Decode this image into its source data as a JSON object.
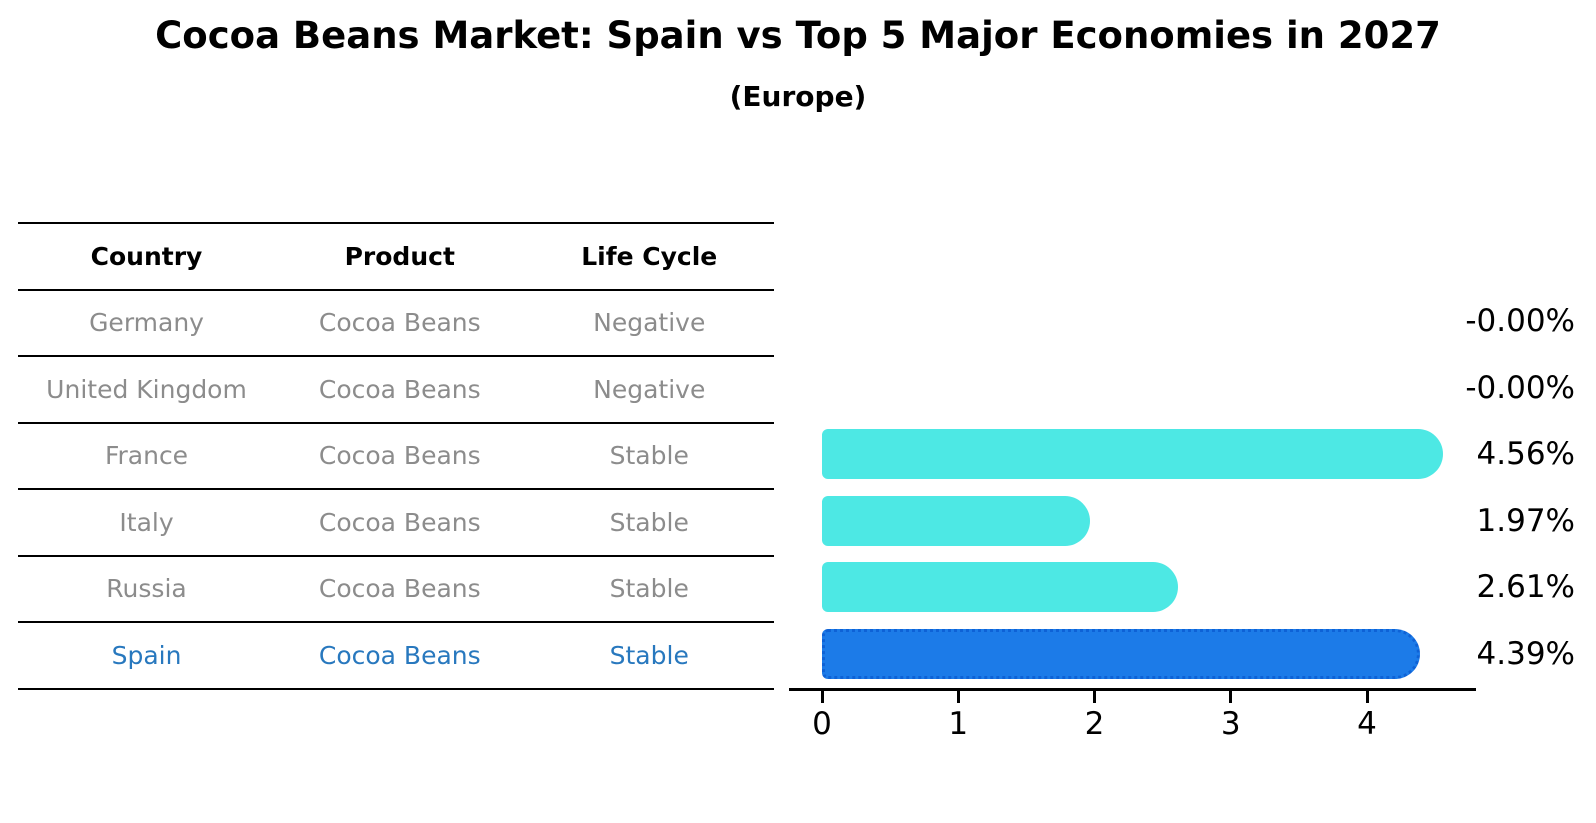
{
  "title": "Cocoa Beans Market: Spain vs Top 5 Major Economies in 2027",
  "subtitle": "(Europe)",
  "table": {
    "headers": [
      "Country",
      "Product",
      "Life Cycle"
    ],
    "rows": [
      {
        "country": "Germany",
        "product": "Cocoa Beans",
        "life_cycle": "Negative",
        "highlight": false
      },
      {
        "country": "United Kingdom",
        "product": "Cocoa Beans",
        "life_cycle": "Negative",
        "highlight": false
      },
      {
        "country": "France",
        "product": "Cocoa Beans",
        "life_cycle": "Stable",
        "highlight": false
      },
      {
        "country": "Italy",
        "product": "Cocoa Beans",
        "life_cycle": "Stable",
        "highlight": false
      },
      {
        "country": "Russia",
        "product": "Cocoa Beans",
        "life_cycle": "Stable",
        "highlight": false
      },
      {
        "country": "Spain",
        "product": "Cocoa Beans",
        "life_cycle": "Stable",
        "highlight": true
      }
    ]
  },
  "chart_data": {
    "type": "bar",
    "orientation": "horizontal",
    "title": "Cocoa Beans Market: Spain vs Top 5 Major Economies in 2027",
    "subtitle": "(Europe)",
    "categories": [
      "Germany",
      "United Kingdom",
      "France",
      "Italy",
      "Russia",
      "Spain"
    ],
    "values": [
      -0.0,
      -0.0,
      4.56,
      1.97,
      2.61,
      4.39
    ],
    "value_labels": [
      "-0.00%",
      "-0.00%",
      "4.56%",
      "1.97%",
      "2.61%",
      "4.39%"
    ],
    "xticks": [
      "0",
      "1",
      "2",
      "3",
      "4"
    ],
    "xlim": [
      0,
      4.8
    ],
    "grid": false,
    "legend": "none",
    "bar_color": "#4DE8E4",
    "highlight_index": 5,
    "highlight_color": "#1C7BE8",
    "highlight_edge_color": "#0E62D6",
    "highlight_text_color": "#2878BE",
    "muted_text_color": "#8C8C8C"
  }
}
